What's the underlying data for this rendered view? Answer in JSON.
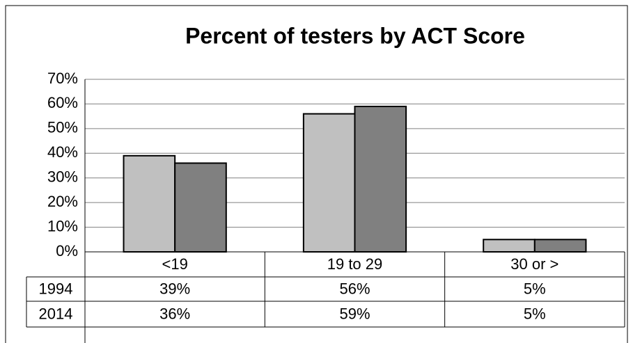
{
  "chart_data": {
    "type": "bar",
    "title": "Percent of testers by ACT Score",
    "categories": [
      "<19",
      "19 to 29",
      "30 or >"
    ],
    "series": [
      {
        "name": "1994",
        "color": "#c0c0c0",
        "values": [
          39,
          56,
          5
        ],
        "value_labels": [
          "39%",
          "56%",
          "5%"
        ]
      },
      {
        "name": "2014",
        "color": "#808080",
        "values": [
          36,
          59,
          5
        ],
        "value_labels": [
          "36%",
          "59%",
          "5%"
        ]
      }
    ],
    "ylim": [
      0,
      70
    ],
    "yticks": [
      {
        "value": 0,
        "label": "0%"
      },
      {
        "value": 10,
        "label": "10%"
      },
      {
        "value": 20,
        "label": "20%"
      },
      {
        "value": 30,
        "label": "30%"
      },
      {
        "value": 40,
        "label": "40%"
      },
      {
        "value": 50,
        "label": "50%"
      },
      {
        "value": 60,
        "label": "60%"
      },
      {
        "value": 70,
        "label": "70%"
      }
    ],
    "grid": true,
    "data_table": true
  }
}
